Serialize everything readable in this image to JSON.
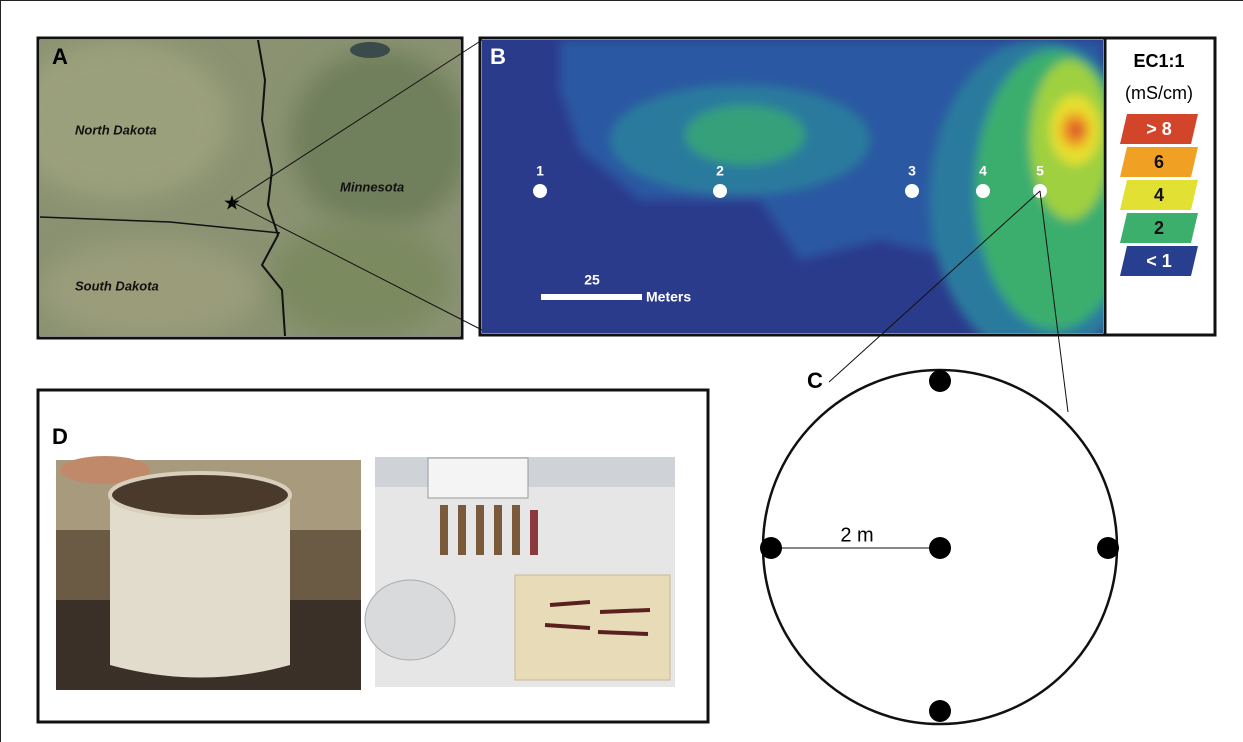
{
  "panels": {
    "A": {
      "label": "A",
      "regions": [
        "North Dakota",
        "Minnesota",
        "South Dakota"
      ]
    },
    "B": {
      "label": "B",
      "points": [
        "1",
        "2",
        "3",
        "4",
        "5"
      ],
      "scale_value": "25",
      "scale_unit": "Meters",
      "legend": {
        "title": "EC1:1",
        "unit": "(mS/cm)",
        "classes": [
          "> 8",
          "6",
          "4",
          "2",
          "< 1"
        ]
      }
    },
    "C": {
      "label": "C",
      "radius_label": "2 m"
    },
    "D": {
      "label": "D"
    }
  }
}
